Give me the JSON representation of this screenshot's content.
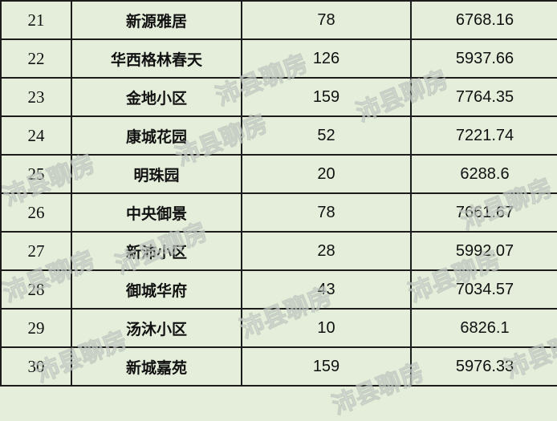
{
  "watermark": "沛县聊房",
  "rows": [
    {
      "index": "21",
      "name": "新源雅居",
      "count": "78",
      "price": "6768.16"
    },
    {
      "index": "22",
      "name": "华西格林春天",
      "count": "126",
      "price": "5937.66"
    },
    {
      "index": "23",
      "name": "金地小区",
      "count": "159",
      "price": "7764.35"
    },
    {
      "index": "24",
      "name": "康城花园",
      "count": "52",
      "price": "7221.74"
    },
    {
      "index": "25",
      "name": "明珠园",
      "count": "20",
      "price": "6288.6"
    },
    {
      "index": "26",
      "name": "中央御景",
      "count": "78",
      "price": "7661.67"
    },
    {
      "index": "27",
      "name": "新沛小区",
      "count": "28",
      "price": "5992.07"
    },
    {
      "index": "28",
      "name": "御城华府",
      "count": "43",
      "price": "7034.57"
    },
    {
      "index": "29",
      "name": "汤沐小区",
      "count": "10",
      "price": "6826.1"
    },
    {
      "index": "30",
      "name": "新城嘉苑",
      "count": "159",
      "price": "5976.33"
    }
  ]
}
